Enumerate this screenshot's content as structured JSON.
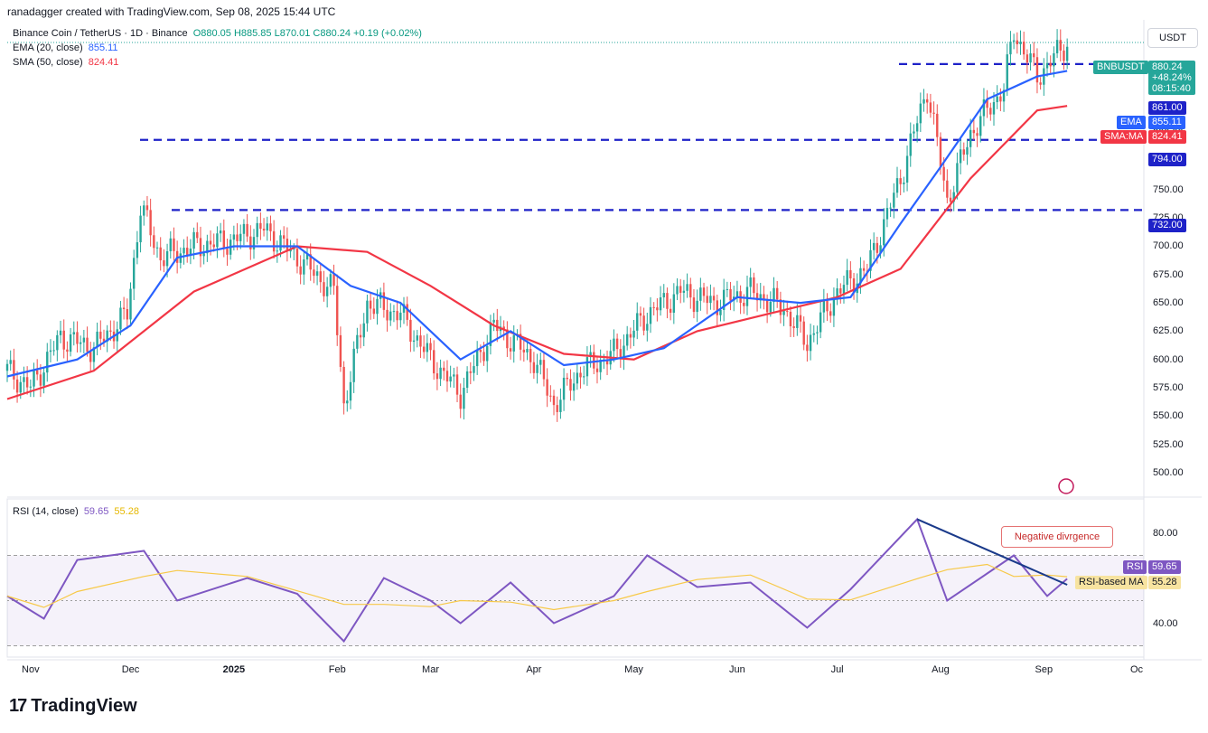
{
  "header": {
    "credit": "ranadagger created with TradingView.com, Sep 08, 2025 15:44 UTC"
  },
  "legend": {
    "symbol": "Binance Coin / TetherUS · 1D · Binance",
    "ohlc": "O880.05 H885.85 L870.01 C880.24 +0.19 (+0.02%)",
    "ema_label": "EMA (20, close)",
    "ema_value": "855.11",
    "sma_label": "SMA (50, close)",
    "sma_value": "824.41",
    "rsi_label": "RSI (14, close)",
    "rsi_value": "59.65",
    "rsi_ma_value": "55.28"
  },
  "currency": "USDT",
  "price_tags": {
    "symbol": "BNBUSDT",
    "price": "880.24",
    "change": "+48.24%",
    "countdown": "08:15:40",
    "level_861": "861.00",
    "ema_tag": "EMA",
    "ema_val": "855.11",
    "sma_tag": "SMA:MA",
    "sma_val": "824.41",
    "level_794": "794.00",
    "level_732": "732.00",
    "rsi_tag": "RSI",
    "rsi_val": "59.65",
    "rsi_ma_tag": "RSI-based MA",
    "rsi_ma_val": "55.28"
  },
  "annotation": "Negative divrgence",
  "brand": "TradingView",
  "colors": {
    "up": "#26a69a",
    "down": "#ef5350",
    "ema": "#2962ff",
    "sma": "#f23645",
    "level": "#1e22c8",
    "rsi": "#7e57c2",
    "rsi_ma": "#f7c948"
  },
  "chart_data": {
    "type": "line",
    "title": "Binance Coin / TetherUS · 1D · Binance",
    "ylabel": "USDT",
    "ylim": [
      480,
      900
    ],
    "x_ticks": [
      "Nov",
      "Dec",
      "2025",
      "Feb",
      "Mar",
      "Apr",
      "May",
      "Jun",
      "Jul",
      "Aug",
      "Sep",
      "Oc"
    ],
    "y_ticks": [
      500,
      525,
      550,
      575,
      600,
      625,
      650,
      675,
      700,
      725,
      750,
      775,
      800
    ],
    "horizontal_levels": [
      861,
      794,
      732
    ],
    "series": [
      {
        "name": "BNBUSDT",
        "x": [
          "Oct 25",
          "Nov 01",
          "Nov 10",
          "Nov 20",
          "Nov 30",
          "Dec 04",
          "Dec 10",
          "Dec 20",
          "Dec 31",
          "Jan 10",
          "Jan 20",
          "Jan 31",
          "Feb 03",
          "Feb 10",
          "Feb 20",
          "Mar 01",
          "Mar 10",
          "Mar 20",
          "Apr 01",
          "Apr 07",
          "Apr 15",
          "Apr 25",
          "May 05",
          "May 15",
          "May 25",
          "Jun 05",
          "Jun 15",
          "Jun 22",
          "Jul 01",
          "Jul 10",
          "Jul 20",
          "Jul 28",
          "Aug 03",
          "Aug 10",
          "Aug 20",
          "Aug 23",
          "Aug 30",
          "Sep 08"
        ],
        "values": [
          590,
          575,
          620,
          610,
          640,
          735,
          690,
          700,
          705,
          715,
          690,
          660,
          560,
          650,
          640,
          600,
          570,
          630,
          600,
          560,
          590,
          605,
          640,
          660,
          650,
          660,
          645,
          615,
          660,
          680,
          760,
          840,
          740,
          800,
          840,
          890,
          850,
          880
        ]
      },
      {
        "name": "EMA (20, close)",
        "x": [
          "Oct 25",
          "Nov 15",
          "Dec 01",
          "Dec 15",
          "Jan 01",
          "Jan 20",
          "Feb 05",
          "Feb 20",
          "Mar 10",
          "Mar 25",
          "Apr 10",
          "Apr 25",
          "May 10",
          "Jun 01",
          "Jun 20",
          "Jul 05",
          "Jul 20",
          "Aug 01",
          "Aug 15",
          "Aug 30",
          "Sep 08"
        ],
        "values": [
          585,
          600,
          630,
          690,
          700,
          700,
          665,
          650,
          600,
          625,
          595,
          600,
          610,
          655,
          650,
          655,
          720,
          770,
          830,
          850,
          855
        ]
      },
      {
        "name": "SMA (50, close)",
        "x": [
          "Oct 25",
          "Nov 20",
          "Dec 20",
          "Jan 20",
          "Feb 10",
          "Mar 01",
          "Mar 20",
          "Apr 10",
          "May 01",
          "May 20",
          "Jun 10",
          "Jul 01",
          "Jul 20",
          "Aug 10",
          "Aug 30",
          "Sep 08"
        ],
        "values": [
          565,
          590,
          660,
          700,
          695,
          665,
          630,
          605,
          600,
          625,
          640,
          655,
          680,
          760,
          820,
          824
        ]
      },
      {
        "name": "RSI (14, close)",
        "x": [
          "Oct 25",
          "Nov 05",
          "Nov 15",
          "Dec 05",
          "Dec 15",
          "Jan 05",
          "Jan 20",
          "Feb 03",
          "Feb 15",
          "Mar 01",
          "Mar 10",
          "Mar 25",
          "Apr 07",
          "Apr 25",
          "May 05",
          "May 20",
          "Jun 05",
          "Jun 22",
          "Jul 05",
          "Jul 25",
          "Aug 03",
          "Aug 15",
          "Aug 23",
          "Sep 02",
          "Sep 08"
        ],
        "values": [
          52,
          42,
          68,
          72,
          50,
          60,
          53,
          32,
          60,
          50,
          40,
          58,
          40,
          52,
          70,
          56,
          58,
          38,
          55,
          86,
          50,
          62,
          70,
          52,
          59.65
        ]
      }
    ],
    "rsi_ylim": [
      25,
      95
    ],
    "rsi_ticks": [
      40,
      80
    ]
  }
}
